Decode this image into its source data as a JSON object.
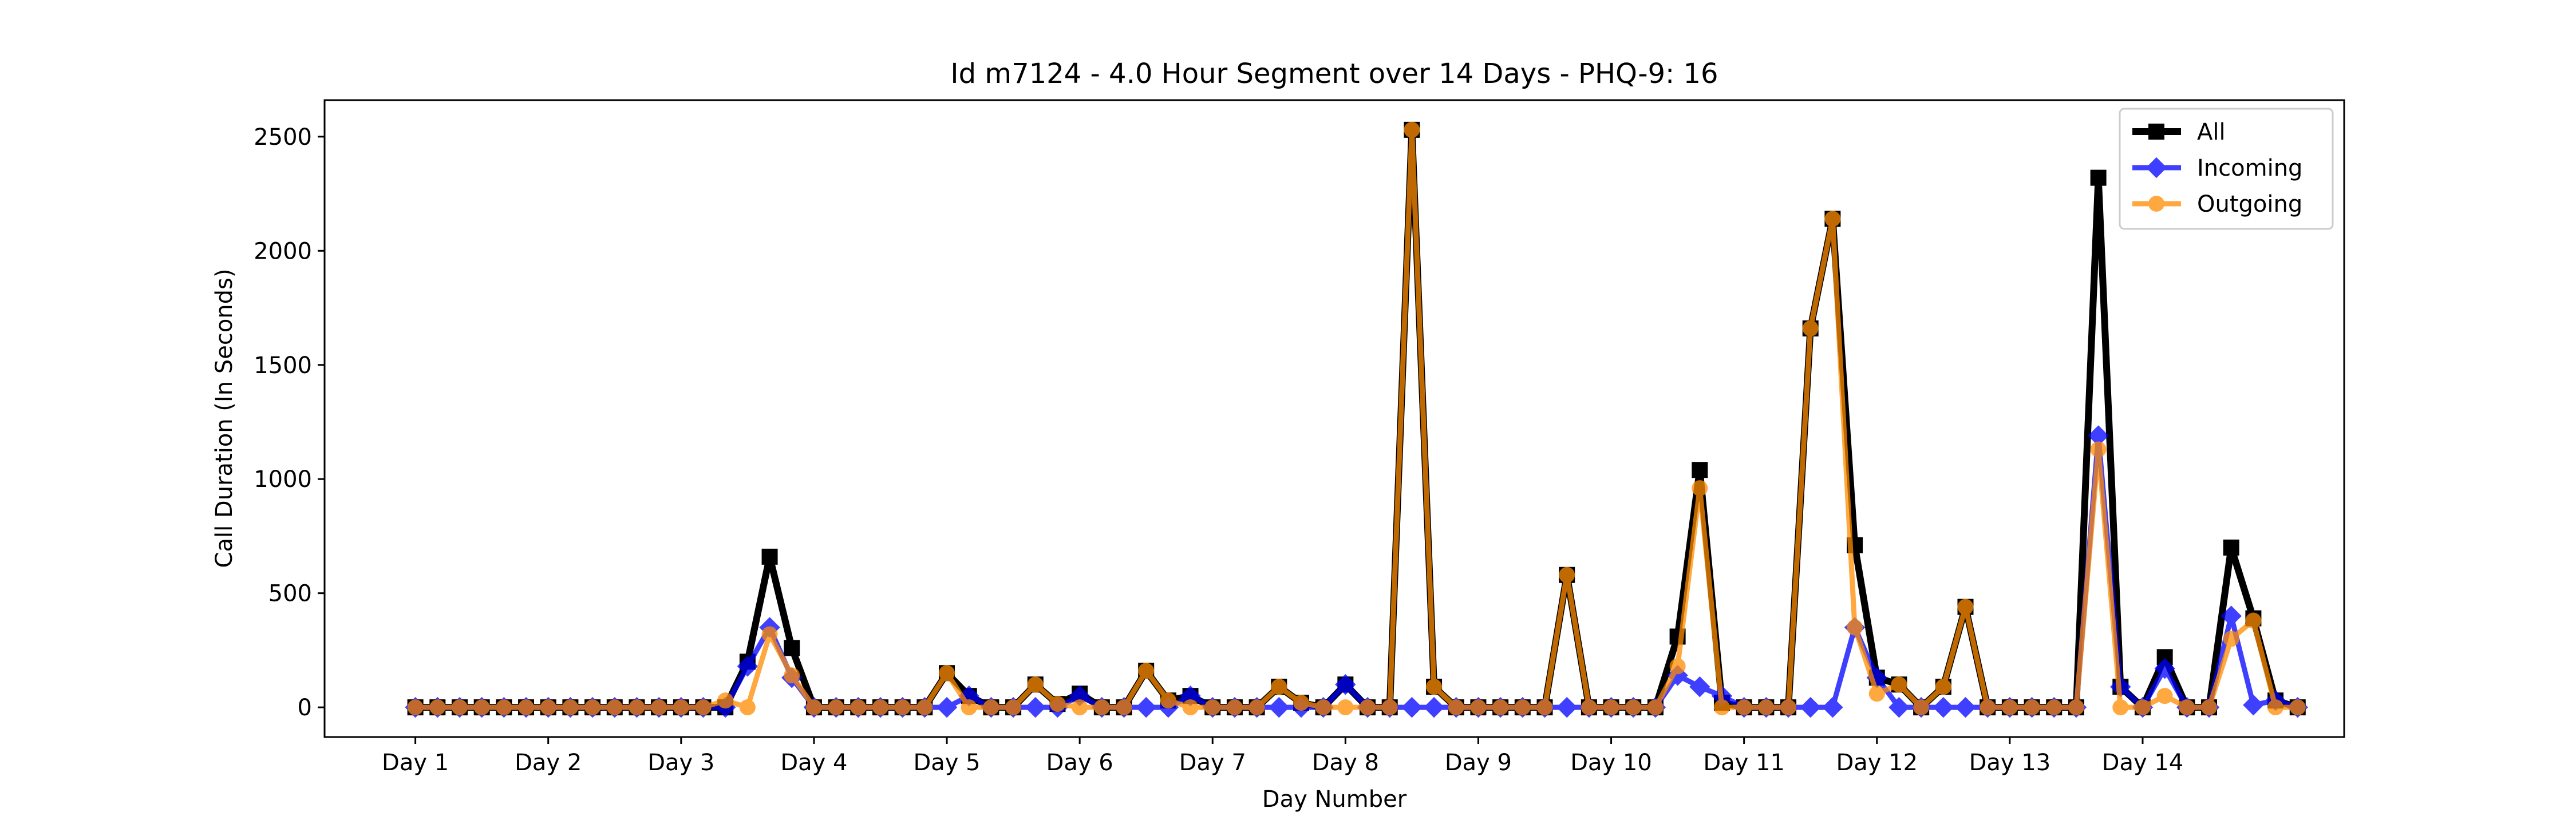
{
  "chart_data": {
    "type": "line",
    "title": "Id m7124 - 4.0 Hour Segment over 14 Days - PHQ-9: 16",
    "xlabel": "Day Number",
    "ylabel": "Call Duration (In Seconds)",
    "xticks": [
      {
        "x": 0,
        "label": "Day 1"
      },
      {
        "x": 6,
        "label": "Day 2"
      },
      {
        "x": 12,
        "label": "Day 3"
      },
      {
        "x": 18,
        "label": "Day 4"
      },
      {
        "x": 24,
        "label": "Day 5"
      },
      {
        "x": 30,
        "label": "Day 6"
      },
      {
        "x": 36,
        "label": "Day 7"
      },
      {
        "x": 42,
        "label": "Day 8"
      },
      {
        "x": 48,
        "label": "Day 9"
      },
      {
        "x": 54,
        "label": "Day 10"
      },
      {
        "x": 60,
        "label": "Day 11"
      },
      {
        "x": 66,
        "label": "Day 12"
      },
      {
        "x": 72,
        "label": "Day 13"
      },
      {
        "x": 78,
        "label": "Day 14"
      }
    ],
    "yticks": [
      0,
      500,
      1000,
      1500,
      2000,
      2500
    ],
    "xlim": [
      -4.1,
      87.1
    ],
    "ylim": [
      -130,
      2660
    ],
    "grid": false,
    "legend_position": "top-right",
    "series": [
      {
        "name": "All",
        "color": "#000000",
        "marker": "square",
        "values": [
          0,
          0,
          0,
          0,
          0,
          0,
          0,
          0,
          0,
          0,
          0,
          0,
          0,
          0,
          0,
          200,
          660,
          260,
          0,
          0,
          0,
          0,
          0,
          0,
          150,
          50,
          0,
          0,
          100,
          15,
          60,
          0,
          0,
          160,
          30,
          50,
          0,
          0,
          0,
          90,
          20,
          0,
          100,
          0,
          0,
          2530,
          90,
          0,
          0,
          0,
          0,
          0,
          580,
          0,
          0,
          0,
          0,
          310,
          1040,
          20,
          0,
          0,
          0,
          1660,
          2140,
          710,
          130,
          100,
          0,
          90,
          440,
          0,
          0,
          0,
          0,
          0,
          2320,
          90,
          0,
          220,
          0,
          0,
          700,
          390,
          30,
          0
        ]
      },
      {
        "name": "Incoming",
        "color": "#0000ff",
        "marker": "diamond",
        "values": [
          0,
          0,
          0,
          0,
          0,
          0,
          0,
          0,
          0,
          0,
          0,
          0,
          0,
          0,
          0,
          180,
          350,
          130,
          0,
          0,
          0,
          0,
          0,
          0,
          0,
          50,
          0,
          0,
          0,
          0,
          50,
          0,
          0,
          0,
          0,
          50,
          0,
          0,
          0,
          0,
          0,
          0,
          100,
          0,
          0,
          0,
          0,
          0,
          0,
          0,
          0,
          0,
          0,
          0,
          0,
          0,
          0,
          140,
          90,
          50,
          0,
          0,
          0,
          0,
          0,
          350,
          130,
          0,
          0,
          0,
          0,
          0,
          0,
          0,
          0,
          0,
          1190,
          90,
          0,
          170,
          0,
          0,
          400,
          10,
          30,
          0
        ]
      },
      {
        "name": "Outgoing",
        "color": "#ff8c00",
        "marker": "circle",
        "values": [
          0,
          0,
          0,
          0,
          0,
          0,
          0,
          0,
          0,
          0,
          0,
          0,
          0,
          0,
          30,
          0,
          320,
          140,
          0,
          0,
          0,
          0,
          0,
          0,
          150,
          0,
          0,
          0,
          100,
          15,
          0,
          0,
          0,
          160,
          30,
          0,
          0,
          0,
          0,
          90,
          20,
          0,
          0,
          0,
          0,
          2530,
          90,
          0,
          0,
          0,
          0,
          0,
          580,
          0,
          0,
          0,
          0,
          180,
          960,
          0,
          0,
          0,
          0,
          1660,
          2140,
          350,
          60,
          100,
          0,
          90,
          440,
          0,
          0,
          0,
          0,
          0,
          1130,
          0,
          0,
          50,
          0,
          0,
          300,
          380,
          0,
          0
        ]
      }
    ]
  }
}
